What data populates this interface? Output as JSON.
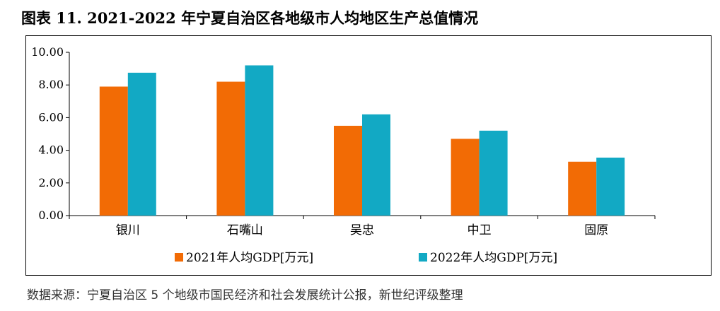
{
  "title": "图表 11. 2021-2022 年宁夏自治区各地级市人均地区生产总值情况",
  "source": "数据来源：宁夏自治区 5 个地级市国民经济和社会发展统计公报，新世纪评级整理",
  "colors": {
    "series2021": "#F26B05",
    "series2022": "#12A9C4"
  },
  "chart_data": {
    "type": "bar",
    "title": "图表 11. 2021-2022 年宁夏自治区各地级市人均地区生产总值情况",
    "xlabel": "",
    "ylabel": "",
    "ylim": [
      0,
      10
    ],
    "yticks": [
      "0.00",
      "2.00",
      "4.00",
      "6.00",
      "8.00",
      "10.00"
    ],
    "categories": [
      "银川",
      "石嘴山",
      "吴忠",
      "中卫",
      "固原"
    ],
    "series": [
      {
        "name": "2021年人均GDP[万元]",
        "values": [
          7.9,
          8.2,
          5.5,
          4.7,
          3.3
        ]
      },
      {
        "name": "2022年人均GDP[万元]",
        "values": [
          8.75,
          9.2,
          6.2,
          5.2,
          3.55
        ]
      }
    ],
    "legend": "bottom",
    "grid": false
  }
}
